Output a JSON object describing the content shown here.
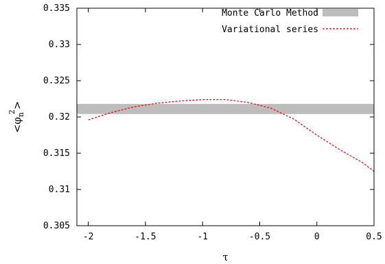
{
  "chart_data": {
    "type": "line",
    "xlabel": "τ",
    "ylabel": {
      "base": "<φ",
      "sub": "n",
      "sup": "2",
      "close": ">"
    },
    "xlim": [
      -2.1,
      0.5
    ],
    "ylim": [
      0.305,
      0.335
    ],
    "x_ticks": [
      -2,
      -1.5,
      -1,
      -0.5,
      0,
      0.5
    ],
    "x_tick_labels": [
      "-2",
      "-1.5",
      "-1",
      "-0.5",
      "0",
      "0.5"
    ],
    "y_ticks": [
      0.305,
      0.31,
      0.315,
      0.32,
      0.325,
      0.33,
      0.335
    ],
    "y_tick_labels": [
      "0.305",
      "0.31",
      "0.315",
      "0.32",
      "0.325",
      "0.33",
      "0.335"
    ],
    "grid": false,
    "legend_position": "top-right",
    "series": [
      {
        "name": "Monte Carlo Method",
        "kind": "band",
        "color": "#bdbdbd",
        "y_low": 0.3204,
        "y_high": 0.3218
      },
      {
        "name": "Variational series",
        "kind": "line",
        "color": "#e8000b",
        "dashed": true,
        "x": [
          -2.0,
          -1.8,
          -1.6,
          -1.4,
          -1.2,
          -1.0,
          -0.9,
          -0.8,
          -0.6,
          -0.4,
          -0.2,
          0.0,
          0.2,
          0.4,
          0.5
        ],
        "y": [
          0.3196,
          0.3206,
          0.3214,
          0.3219,
          0.3222,
          0.3224,
          0.3224,
          0.3224,
          0.322,
          0.3212,
          0.3197,
          0.3175,
          0.3155,
          0.3137,
          0.3125
        ]
      }
    ]
  }
}
